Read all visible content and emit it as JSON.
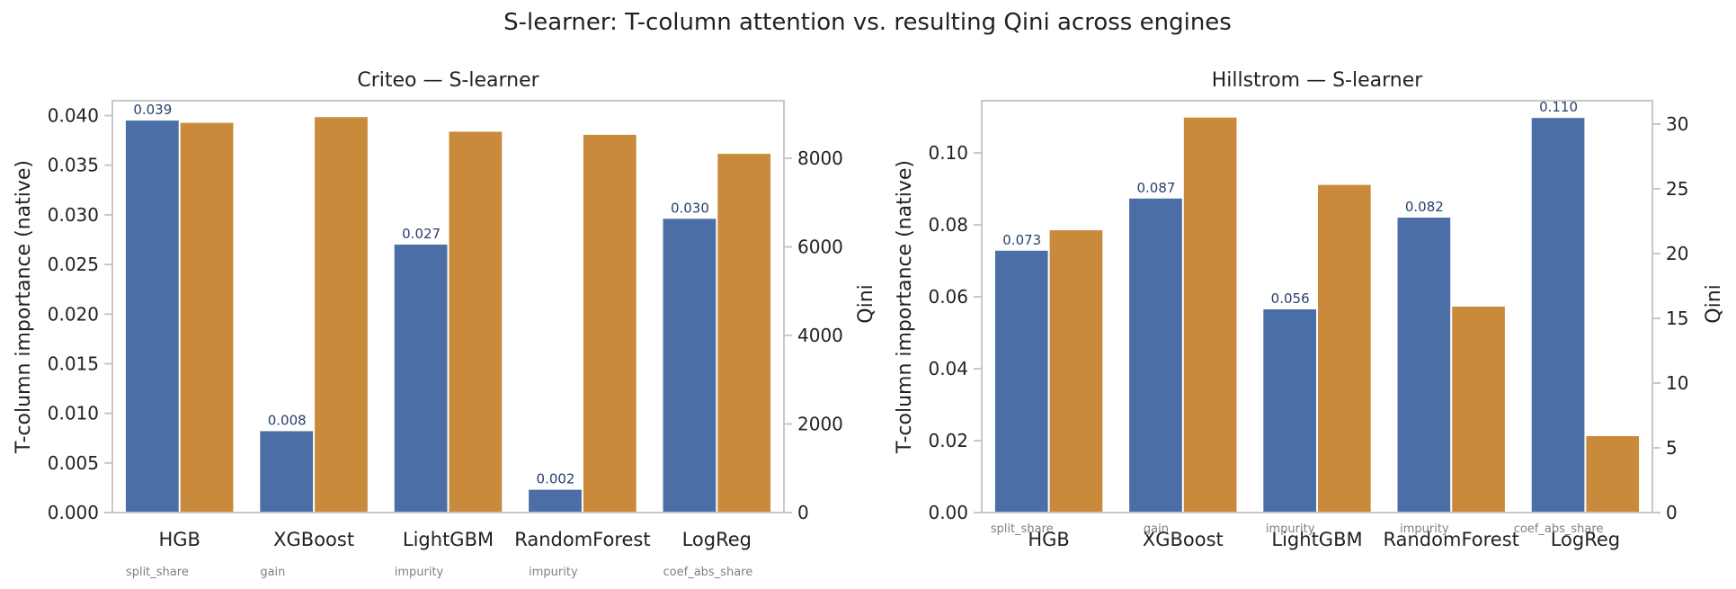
{
  "suptitle": "S-learner: T-column attention vs. resulting Qini across engines",
  "colors": {
    "importance": "#4a6ea5",
    "qini": "#c98a3c",
    "axis": "#c8c8c8",
    "label": "#2a3e6e"
  },
  "chart_data": [
    {
      "type": "bar",
      "title": "Criteo — S-learner",
      "categories": [
        "HGB",
        "XGBoost",
        "LightGBM",
        "RandomForest",
        "LogReg"
      ],
      "importance_kinds": [
        "split_share",
        "gain",
        "impurity",
        "impurity",
        "coef_abs_share"
      ],
      "ylabel": "T-column importance (native)",
      "y2label": "Qini",
      "ylim": [
        0,
        0.0415
      ],
      "y2lim": [
        0,
        9300
      ],
      "yticks": [
        "0.000",
        "0.005",
        "0.010",
        "0.015",
        "0.020",
        "0.025",
        "0.030",
        "0.035",
        "0.040"
      ],
      "y2ticks": [
        "0",
        "2000",
        "4000",
        "6000",
        "8000"
      ],
      "series": [
        {
          "values": [
            0.0395,
            0.0082,
            0.027,
            0.0023,
            0.0296
          ],
          "labels": [
            "0.039",
            "0.008",
            "0.027",
            "0.002",
            "0.030"
          ],
          "axis": "left"
        },
        {
          "values": [
            8800,
            8930,
            8600,
            8530,
            8100
          ],
          "axis": "right"
        }
      ],
      "grid": false
    },
    {
      "type": "bar",
      "title": "Hillstrom — S-learner",
      "categories": [
        "HGB",
        "XGBoost",
        "LightGBM",
        "RandomForest",
        "LogReg"
      ],
      "importance_kinds": [
        "split_share",
        "gain",
        "impurity",
        "impurity",
        "coef_abs_share"
      ],
      "ylabel": "T-column importance (native)",
      "y2label": "Qini",
      "ylim": [
        0,
        0.1145
      ],
      "y2lim": [
        0,
        31.8
      ],
      "yticks": [
        "0.00",
        "0.02",
        "0.04",
        "0.06",
        "0.08",
        "0.10"
      ],
      "y2ticks": [
        "0",
        "5",
        "10",
        "15",
        "20",
        "25",
        "30"
      ],
      "series": [
        {
          "values": [
            0.0728,
            0.0873,
            0.0565,
            0.082,
            0.1097
          ],
          "labels": [
            "0.073",
            "0.087",
            "0.056",
            "0.082",
            "0.110"
          ],
          "axis": "left"
        },
        {
          "values": [
            21.8,
            30.5,
            25.3,
            15.9,
            5.9
          ],
          "axis": "right"
        }
      ],
      "grid": false
    }
  ]
}
